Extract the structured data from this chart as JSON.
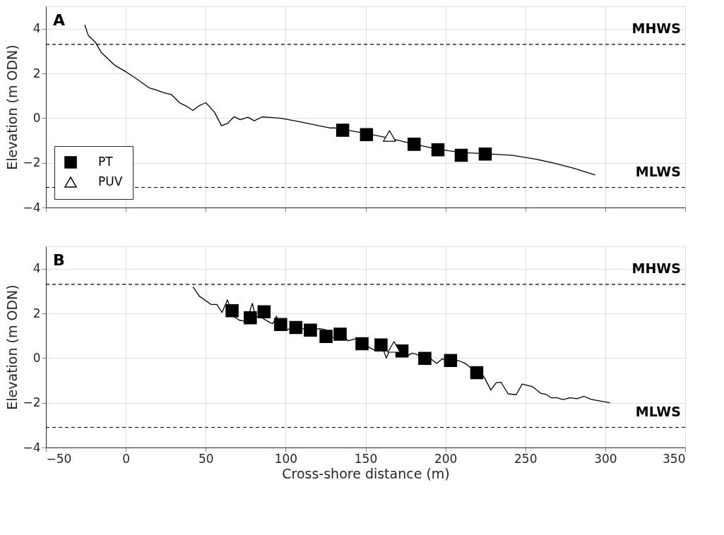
{
  "chart_data": [
    {
      "type": "line",
      "title": "A",
      "ylabel": "Elevation (m ODN)",
      "xlim": [
        -50,
        350
      ],
      "xticks": [
        -50,
        0,
        50,
        100,
        150,
        200,
        250,
        300,
        350
      ],
      "ylim": [
        -4,
        5
      ],
      "yticks": [
        -4,
        -2,
        0,
        2,
        4
      ],
      "grid": true,
      "legend": "bottom left",
      "tick_labels": "y",
      "series": [
        {
          "color": "#000000",
          "line_style": "solid",
          "marker": "none",
          "x": [
            -25.7,
            -23.5,
            -19.1,
            -15.5,
            -6.7,
            0.6,
            5.8,
            14.5,
            18.9,
            24.1,
            28.4,
            33.6,
            38,
            42,
            46,
            50.1,
            55.5,
            59.9,
            63.6,
            67.7,
            71.6,
            76.4,
            80.4,
            85.2,
            89.2,
            97.2,
            107.5,
            119.2,
            128,
            130.9,
            150.6,
            164.6,
            180.6,
            195.3,
            209.9,
            224.5,
            242.1,
            256.8,
            268.5,
            280.2,
            293.7
          ],
          "values": [
            4.18,
            3.7,
            3.4,
            2.95,
            2.35,
            2.05,
            1.8,
            1.36,
            1.26,
            1.13,
            1.06,
            0.69,
            0.53,
            0.34,
            0.56,
            0.69,
            0.26,
            -0.34,
            -0.24,
            0.06,
            -0.07,
            0.04,
            -0.12,
            0.05,
            0.04,
            -0.01,
            -0.14,
            -0.32,
            -0.44,
            -0.44,
            -0.69,
            -0.89,
            -1.17,
            -1.39,
            -1.54,
            -1.59,
            -1.67,
            -1.84,
            -2.02,
            -2.24,
            -2.54
          ]
        },
        {
          "type": "scatter",
          "name": "PT",
          "color": "#000000",
          "marker": "square",
          "x": [
            135.7,
            150.6,
            180.4,
            195.3,
            209.9,
            224.9
          ],
          "values": [
            -0.54,
            -0.74,
            -1.17,
            -1.42,
            -1.66,
            -1.61
          ]
        },
        {
          "type": "scatter",
          "name": "PUV",
          "color": "#ffffff",
          "marker": "triangle",
          "x": [
            165
          ],
          "values": [
            -0.8
          ]
        }
      ],
      "ref_lines": [
        {
          "axis": "y",
          "value": 3.3,
          "label": "MHWS",
          "line_style": "dashed",
          "color": "#000000"
        },
        {
          "axis": "y",
          "value": -3.1,
          "label": "MLWS",
          "line_style": "dashed",
          "color": "#000000"
        }
      ]
    },
    {
      "type": "line",
      "title": "B",
      "xlabel": "Cross-shore distance (m)",
      "ylabel": "Elevation (m ODN)",
      "xlim": [
        -50,
        350
      ],
      "xticks": [
        -50,
        0,
        50,
        100,
        150,
        200,
        250,
        300,
        350
      ],
      "ylim": [
        -4,
        5
      ],
      "yticks": [
        -4,
        -2,
        0,
        2,
        4
      ],
      "grid": true,
      "series": [
        {
          "color": "#000000",
          "line_style": "solid",
          "marker": "none",
          "x": [
            42,
            46,
            53.3,
            57,
            60.2,
            63.6,
            67.3,
            70.9,
            74.1,
            76.8,
            79.2,
            81.1,
            85.5,
            90.6,
            92.1,
            94.3,
            96.5,
            100.2,
            106,
            110.4,
            116.3,
            121.4,
            125,
            126.5,
            130.9,
            136,
            139,
            143.9,
            147.6,
            154.2,
            157.1,
            160.1,
            163,
            164.5,
            168.1,
            171.8,
            175.5,
            179.1,
            181.3,
            185.7,
            190.8,
            194.5,
            198.1,
            204,
            207.7,
            212.1,
            217.2,
            222.3,
            225.2,
            228.4,
            231.8,
            234.8,
            239.2,
            244.3,
            248,
            254.5,
            259.7,
            262.6,
            266.3,
            269.9,
            273.6,
            278,
            282.4,
            286.8,
            291.2,
            302.9
          ],
          "values": [
            3.19,
            2.77,
            2.4,
            2.4,
            2.04,
            2.6,
            1.87,
            1.7,
            1.65,
            1.92,
            2.45,
            1.87,
            1.79,
            1.57,
            1.55,
            1.87,
            1.37,
            1.24,
            1.42,
            1.32,
            1.27,
            1.32,
            1.27,
            0.92,
            0.92,
            1.07,
            0.77,
            0.87,
            0.67,
            0.4,
            0.32,
            0.57,
            0.0,
            0.24,
            0.69,
            0.24,
            0.07,
            0.22,
            0.19,
            0.0,
            -0.03,
            -0.24,
            -0.03,
            -0.28,
            -0.1,
            -0.23,
            -0.5,
            -0.63,
            -0.98,
            -1.43,
            -1.1,
            -1.08,
            -1.6,
            -1.64,
            -1.16,
            -1.28,
            -1.58,
            -1.61,
            -1.78,
            -1.78,
            -1.86,
            -1.78,
            -1.82,
            -1.71,
            -1.85,
            -2.0
          ]
        },
        {
          "type": "scatter",
          "color": "#000000",
          "marker": "square",
          "x": [
            66.5,
            77.9,
            86.5,
            96.9,
            106.4,
            115.5,
            125.3,
            134.1,
            147.8,
            159.7,
            172.8,
            187.1,
            203.2,
            219.6
          ],
          "values": [
            2.12,
            1.8,
            2.07,
            1.5,
            1.37,
            1.25,
            0.97,
            1.07,
            0.64,
            0.59,
            0.32,
            -0.01,
            -0.11,
            -0.65
          ]
        },
        {
          "type": "scatter",
          "color": "#ffffff",
          "marker": "triangle",
          "x": [
            167.8
          ],
          "values": [
            0.5
          ]
        }
      ],
      "ref_lines": [
        {
          "axis": "y",
          "value": 3.3,
          "label": "MHWS",
          "line_style": "dashed",
          "color": "#000000"
        },
        {
          "axis": "y",
          "value": -3.1,
          "label": "MLWS",
          "line_style": "dashed",
          "color": "#000000"
        }
      ]
    }
  ]
}
